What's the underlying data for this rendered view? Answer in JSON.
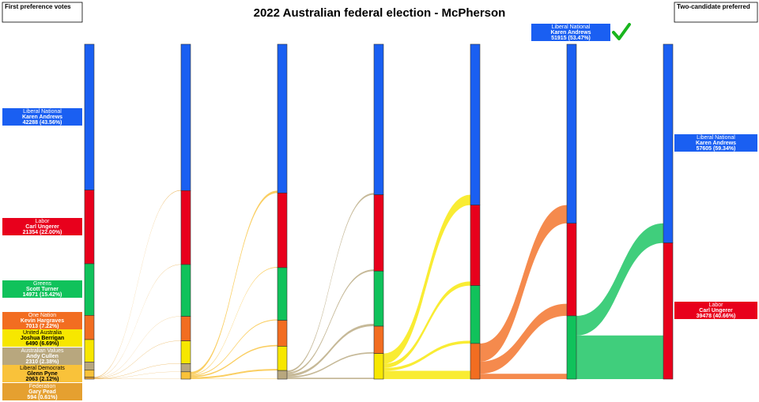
{
  "chart_data": {
    "type": "sankey",
    "title": "2022 Australian federal election - McPherson",
    "left_heading": "First preference votes",
    "right_heading": "Two-candidate preferred",
    "candidates": [
      {
        "party": "Liberal National",
        "name": "Karen Andrews",
        "label": "42288 (43.56%)",
        "color": "#1a5ff2",
        "text_color": "#ffffff"
      },
      {
        "party": "Labor",
        "name": "Carl Ungerer",
        "label": "21354 (22.00%)",
        "color": "#e8001c",
        "text_color": "#ffffff"
      },
      {
        "party": "Greens",
        "name": "Scott Turner",
        "label": "14971 (15.42%)",
        "color": "#10c25b",
        "text_color": "#ffffff"
      },
      {
        "party": "One Nation",
        "name": "Kevin Hargraves",
        "label": "7013 (7.22%)",
        "color": "#f26d21",
        "text_color": "#ffffff"
      },
      {
        "party": "United Australia",
        "name": "Joshua Berrigan",
        "label": "6490 (6.69%)",
        "color": "#f7e700",
        "text_color": "#000000"
      },
      {
        "party": "Australian Values",
        "name": "Andy Cullen",
        "label": "2310 (2.38%)",
        "color": "#b8a77e",
        "text_color": "#ffffff"
      },
      {
        "party": "Liberal Democrats",
        "name": "Glenn Pyne",
        "label": "2063 (2.12%)",
        "color": "#f9c23a",
        "text_color": "#000000"
      },
      {
        "party": "Federation",
        "name": "Gary Pead",
        "label": "594 (0.61%)",
        "color": "#e5a030",
        "text_color": "#ffffff"
      }
    ],
    "rounds": [
      [
        42288,
        21354,
        14971,
        7013,
        6490,
        2310,
        2063,
        594
      ],
      [
        42438,
        21434,
        15031,
        7113,
        6580,
        2380,
        2107,
        null
      ],
      [
        43138,
        21634,
        15281,
        7513,
        7030,
        2487,
        null,
        null
      ],
      [
        43638,
        22134,
        15981,
        7913,
        7417,
        null,
        null,
        null
      ],
      [
        46638,
        23334,
        16781,
        10330,
        null,
        null,
        null,
        null
      ],
      [
        51915,
        26834,
        18334,
        null,
        null,
        null,
        null,
        null
      ],
      [
        57605,
        39478,
        null,
        null,
        null,
        null,
        null,
        null
      ]
    ],
    "winner": {
      "party": "Liberal National",
      "name": "Karen Andrews",
      "label": "51915 (53.47%)"
    },
    "final": [
      {
        "party": "Liberal National",
        "name": "Karen Andrews",
        "label": "57605 (59.34%)"
      },
      {
        "party": "Labor",
        "name": "Carl Ungerer",
        "label": "39478 (40.66%)"
      }
    ]
  }
}
